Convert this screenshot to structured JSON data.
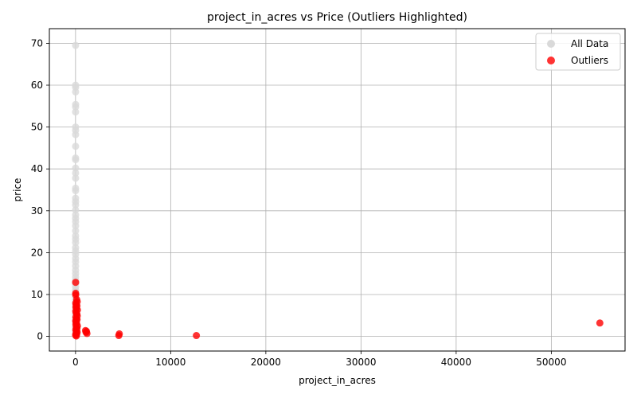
{
  "chart_data": {
    "type": "scatter",
    "title": "project_in_acres vs Price (Outliers Highlighted)",
    "xlabel": "project_in_acres",
    "ylabel": "price",
    "xlim": [
      -2750,
      57750
    ],
    "ylim": [
      -3.5,
      73.5
    ],
    "xticks": [
      0,
      10000,
      20000,
      30000,
      40000,
      50000
    ],
    "yticks": [
      0,
      10,
      20,
      30,
      40,
      50,
      60,
      70
    ],
    "grid": true,
    "legend": "top-right",
    "series": [
      {
        "name": "All Data",
        "color": "#d9d9d9",
        "points": [
          [
            5,
            69.5
          ],
          [
            5,
            60
          ],
          [
            8,
            59.5
          ],
          [
            6,
            58.4
          ],
          [
            10,
            55.4
          ],
          [
            6,
            54.8
          ],
          [
            4,
            53.6
          ],
          [
            5,
            50
          ],
          [
            7,
            49.2
          ],
          [
            5,
            48.2
          ],
          [
            6,
            45.4
          ],
          [
            4,
            42.6
          ],
          [
            8,
            42.2
          ],
          [
            5,
            40.2
          ],
          [
            6,
            39
          ],
          [
            5,
            37.8
          ],
          [
            4,
            35.4
          ],
          [
            7,
            34.8
          ],
          [
            5,
            33
          ],
          [
            6,
            32.2
          ],
          [
            4,
            31.4
          ],
          [
            5,
            30.2
          ],
          [
            6,
            29
          ],
          [
            4,
            28.2
          ],
          [
            5,
            27.4
          ],
          [
            7,
            26.4
          ],
          [
            5,
            25.2
          ],
          [
            4,
            24
          ],
          [
            6,
            23.2
          ],
          [
            5,
            22.4
          ],
          [
            4,
            21.2
          ],
          [
            6,
            20.4
          ],
          [
            5,
            19.6
          ],
          [
            4,
            18.6
          ],
          [
            6,
            17.8
          ],
          [
            5,
            16.8
          ],
          [
            4,
            15.8
          ],
          [
            6,
            15
          ],
          [
            5,
            14.2
          ],
          [
            4,
            13.4
          ],
          [
            5,
            12.6
          ],
          [
            6,
            11.8
          ],
          [
            5,
            11
          ],
          [
            4,
            10.2
          ],
          [
            5,
            9.4
          ],
          [
            6,
            8.6
          ],
          [
            5,
            7.8
          ],
          [
            4,
            7
          ],
          [
            6,
            6.2
          ],
          [
            5,
            5.4
          ],
          [
            4,
            4.6
          ],
          [
            5,
            3.8
          ],
          [
            6,
            3
          ],
          [
            5,
            2.2
          ],
          [
            4,
            1.4
          ],
          [
            5,
            0.6
          ],
          [
            6,
            0.2
          ]
        ]
      },
      {
        "name": "Outliers",
        "color": "#ff0000",
        "points": [
          [
            10,
            12.9
          ],
          [
            15,
            10.3
          ],
          [
            20,
            9.9
          ],
          [
            120,
            8.8
          ],
          [
            180,
            8.3
          ],
          [
            30,
            8.0
          ],
          [
            60,
            7.6
          ],
          [
            150,
            7.3
          ],
          [
            40,
            7.0
          ],
          [
            90,
            6.6
          ],
          [
            200,
            6.3
          ],
          [
            25,
            6.0
          ],
          [
            70,
            5.6
          ],
          [
            140,
            5.3
          ],
          [
            180,
            4.9
          ],
          [
            35,
            4.6
          ],
          [
            95,
            4.2
          ],
          [
            160,
            4.0
          ],
          [
            20,
            3.7
          ],
          [
            60,
            3.4
          ],
          [
            110,
            3.1
          ],
          [
            40,
            2.8
          ],
          [
            200,
            2.5
          ],
          [
            80,
            2.2
          ],
          [
            150,
            1.9
          ],
          [
            30,
            1.6
          ],
          [
            100,
            1.3
          ],
          [
            170,
            1.0
          ],
          [
            50,
            0.8
          ],
          [
            120,
            0.5
          ],
          [
            10,
            0.3
          ],
          [
            80,
            0.1
          ],
          [
            1050,
            1.4
          ],
          [
            1100,
            1.0
          ],
          [
            1200,
            0.7
          ],
          [
            1150,
            1.2
          ],
          [
            4600,
            0.6
          ],
          [
            4550,
            0.2
          ],
          [
            12700,
            0.2
          ],
          [
            55100,
            3.2
          ]
        ]
      }
    ]
  }
}
